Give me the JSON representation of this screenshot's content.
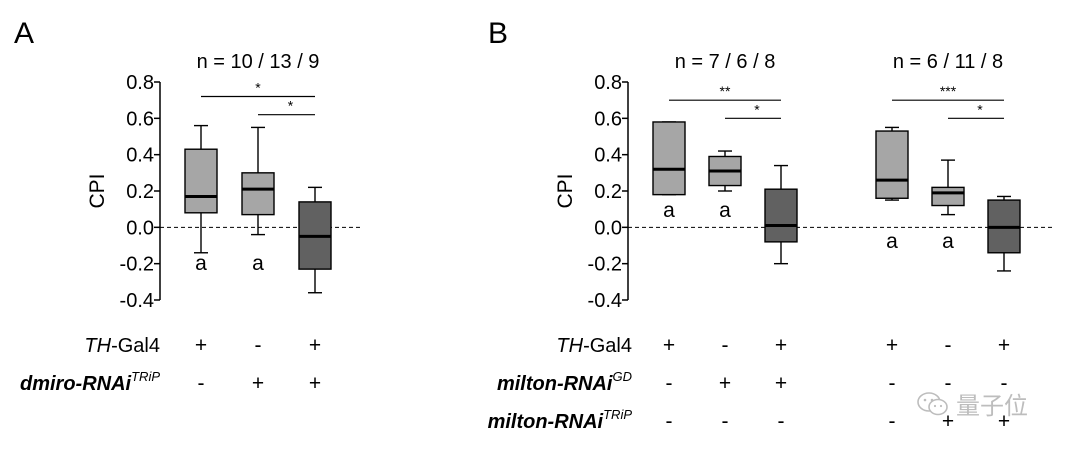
{
  "chart_data": [
    {
      "panel": "A",
      "type": "box",
      "ylabel": "CPI",
      "ylim": [
        -0.4,
        0.8
      ],
      "yticks": [
        "0.8",
        "0.6",
        "0.4",
        "0.2",
        "0.0",
        "-0.2",
        "-0.4"
      ],
      "reference_line": 0.0,
      "groups": [
        {
          "n_label": "n = 10 / 13 / 9",
          "boxes": [
            {
              "min": -0.14,
              "q1": 0.08,
              "median": 0.17,
              "q3": 0.43,
              "max": 0.56,
              "color": "#a6a6a6",
              "letter": "a"
            },
            {
              "min": -0.04,
              "q1": 0.07,
              "median": 0.21,
              "q3": 0.3,
              "max": 0.55,
              "color": "#a6a6a6",
              "letter": "a"
            },
            {
              "min": -0.36,
              "q1": -0.23,
              "median": -0.05,
              "q3": 0.14,
              "max": 0.22,
              "color": "#616161",
              "letter": ""
            }
          ],
          "significance": [
            {
              "from": 0,
              "to": 2,
              "y": 0.72,
              "label": "*"
            },
            {
              "from": 1,
              "to": 2,
              "y": 0.62,
              "label": "*"
            }
          ]
        }
      ],
      "genotype_rows": [
        {
          "label_italic": "TH",
          "label_rest": "-Gal4",
          "sup": "",
          "values": [
            [
              "+",
              "-",
              "+"
            ]
          ]
        },
        {
          "label_italic": "dmiro-RNAi",
          "label_rest": "",
          "sup": "TRiP",
          "values": [
            [
              "-",
              "+",
              "+"
            ]
          ]
        }
      ]
    },
    {
      "panel": "B",
      "type": "box",
      "ylabel": "CPI",
      "ylim": [
        -0.4,
        0.8
      ],
      "yticks": [
        "0.8",
        "0.6",
        "0.4",
        "0.2",
        "0.0",
        "-0.2",
        "-0.4"
      ],
      "reference_line": 0.0,
      "groups": [
        {
          "n_label": "n = 7 / 6 / 8",
          "boxes": [
            {
              "min": 0.18,
              "q1": 0.18,
              "median": 0.32,
              "q3": 0.58,
              "max": 0.58,
              "color": "#a6a6a6",
              "letter": "a"
            },
            {
              "min": 0.2,
              "q1": 0.23,
              "median": 0.31,
              "q3": 0.39,
              "max": 0.42,
              "color": "#a6a6a6",
              "letter": "a"
            },
            {
              "min": -0.2,
              "q1": -0.08,
              "median": 0.01,
              "q3": 0.21,
              "max": 0.34,
              "color": "#616161",
              "letter": ""
            }
          ],
          "significance": [
            {
              "from": 0,
              "to": 2,
              "y": 0.7,
              "label": "**"
            },
            {
              "from": 1,
              "to": 2,
              "y": 0.6,
              "label": "*"
            }
          ]
        },
        {
          "n_label": "n = 6 / 11 / 8",
          "boxes": [
            {
              "min": 0.15,
              "q1": 0.16,
              "median": 0.26,
              "q3": 0.53,
              "max": 0.55,
              "color": "#a6a6a6",
              "letter": "a"
            },
            {
              "min": 0.07,
              "q1": 0.12,
              "median": 0.19,
              "q3": 0.22,
              "max": 0.37,
              "color": "#a6a6a6",
              "letter": "a"
            },
            {
              "min": -0.24,
              "q1": -0.14,
              "median": 0.0,
              "q3": 0.15,
              "max": 0.17,
              "color": "#616161",
              "letter": ""
            }
          ],
          "significance": [
            {
              "from": 0,
              "to": 2,
              "y": 0.7,
              "label": "***"
            },
            {
              "from": 1,
              "to": 2,
              "y": 0.6,
              "label": "*"
            }
          ]
        }
      ],
      "genotype_rows": [
        {
          "label_italic": "TH",
          "label_rest": "-Gal4",
          "sup": "",
          "values": [
            [
              "+",
              "-",
              "+"
            ],
            [
              "+",
              "-",
              "+"
            ]
          ]
        },
        {
          "label_italic": "milton-RNAi",
          "label_rest": "",
          "sup": "GD",
          "values": [
            [
              "-",
              "+",
              "+"
            ],
            [
              "-",
              "-",
              "-"
            ]
          ]
        },
        {
          "label_italic": "milton-RNAi",
          "label_rest": "",
          "sup": "TRiP",
          "values": [
            [
              "-",
              "-",
              "-"
            ],
            [
              "-",
              "+",
              "+"
            ]
          ]
        }
      ]
    }
  ],
  "watermark": "量子位"
}
